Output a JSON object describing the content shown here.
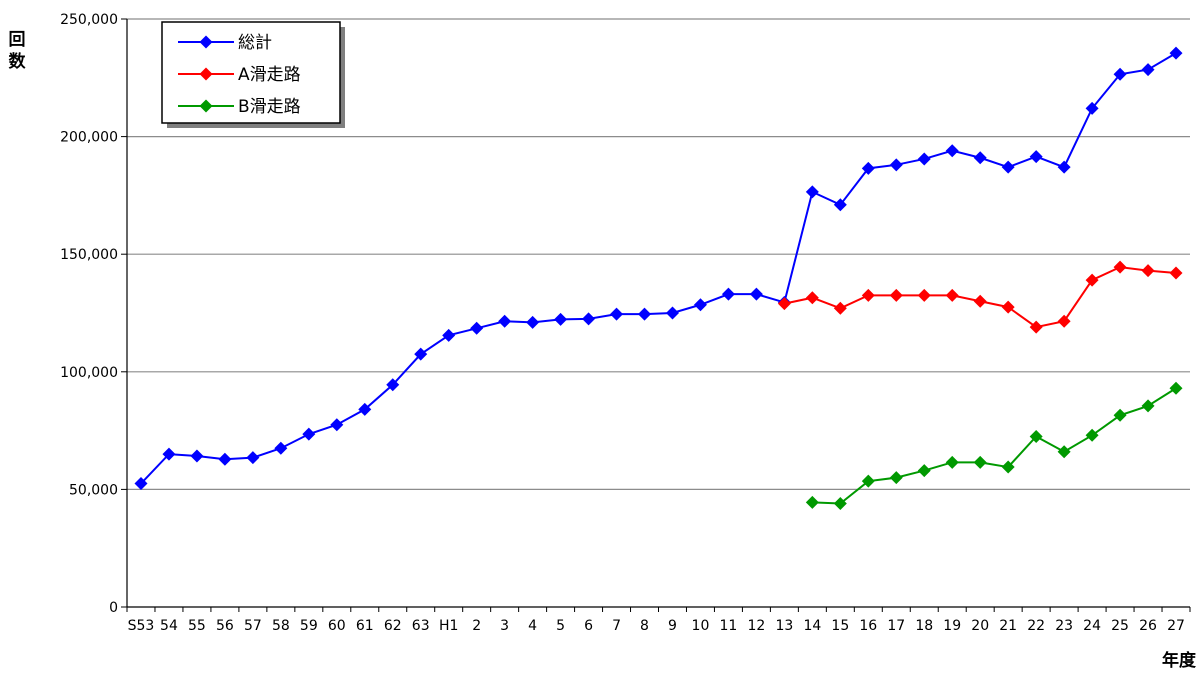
{
  "chart_data": {
    "type": "line",
    "ylabel": "回数",
    "xlabel": "年度",
    "ylim": [
      0,
      250000
    ],
    "yticks": [
      "0",
      "50,000",
      "100,000",
      "150,000",
      "200,000",
      "250,000"
    ],
    "grid": true,
    "legend_position": "top-left",
    "categories": [
      "S53",
      "54",
      "55",
      "56",
      "57",
      "58",
      "59",
      "60",
      "61",
      "62",
      "63",
      "H1",
      "2",
      "3",
      "4",
      "5",
      "6",
      "7",
      "8",
      "9",
      "10",
      "11",
      "12",
      "13",
      "14",
      "15",
      "16",
      "17",
      "18",
      "19",
      "20",
      "21",
      "22",
      "23",
      "24",
      "25",
      "26",
      "27"
    ],
    "series": [
      {
        "name": "総計",
        "color": "#0000ff",
        "values": [
          52500,
          65000,
          64200,
          62800,
          63500,
          67500,
          73500,
          77500,
          84000,
          94500,
          107500,
          115500,
          118500,
          121500,
          121000,
          122300,
          122500,
          124500,
          124500,
          125000,
          128500,
          133000,
          133000,
          129500,
          176500,
          171000,
          186500,
          188000,
          190500,
          194000,
          191000,
          187000,
          191500,
          187000,
          212000,
          226500,
          228500,
          235500
        ]
      },
      {
        "name": "A滑走路",
        "color": "#ff0000",
        "values": [
          null,
          null,
          null,
          null,
          null,
          null,
          null,
          null,
          null,
          null,
          null,
          null,
          null,
          null,
          null,
          null,
          null,
          null,
          null,
          null,
          null,
          null,
          null,
          129000,
          131500,
          127000,
          132500,
          132500,
          132500,
          132500,
          130000,
          127500,
          119000,
          121500,
          139000,
          144500,
          143000,
          142000
        ]
      },
      {
        "name": "B滑走路",
        "color": "#009900",
        "values": [
          null,
          null,
          null,
          null,
          null,
          null,
          null,
          null,
          null,
          null,
          null,
          null,
          null,
          null,
          null,
          null,
          null,
          null,
          null,
          null,
          null,
          null,
          null,
          null,
          44500,
          44000,
          53500,
          55000,
          58000,
          61500,
          61500,
          59500,
          72500,
          66000,
          73000,
          81500,
          85500,
          93000
        ]
      }
    ]
  }
}
